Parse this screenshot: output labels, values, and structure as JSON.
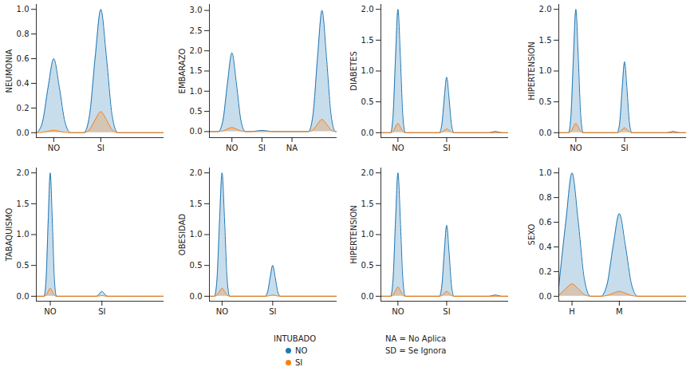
{
  "figure": {
    "legend_title": "INTUBADO",
    "annotations": [
      "NA = No Aplica",
      "SD = Se Ignora"
    ]
  },
  "chart_data": [
    {
      "type": "area",
      "y_label": "NEUMONIA",
      "x": [
        0.64,
        0.76,
        0.88,
        1.0,
        1.12,
        1.24,
        1.36,
        1.64,
        1.76,
        1.88,
        2.0,
        2.12,
        2.24,
        2.36,
        3.34
      ],
      "xlim": [
        0.63,
        3.34
      ],
      "xticks": [
        {
          "value": 1,
          "label": "NO"
        },
        {
          "value": 2,
          "label": "SI"
        }
      ],
      "ylim": [
        -0.04,
        1.04
      ],
      "yticks": [
        {
          "value": 0,
          "label": "0.0"
        },
        0.2,
        0.4,
        0.6,
        0.8,
        {
          "value": 1,
          "label": "1.0"
        }
      ],
      "series": [
        {
          "name": "NO",
          "color": "#1f77b4",
          "values": [
            0,
            0.084,
            0.366,
            0.6,
            0.366,
            0.084,
            0,
            0,
            0.14,
            0.61,
            1.0,
            0.61,
            0.14,
            0,
            0
          ]
        },
        {
          "name": "SI",
          "color": "#ff7f0e",
          "values": [
            0,
            0.003,
            0.012,
            0.02,
            0.012,
            0.003,
            0,
            0,
            0.024,
            0.104,
            0.17,
            0.104,
            0.024,
            0,
            0
          ]
        }
      ]
    },
    {
      "type": "area",
      "y_label": "EMBARAZO",
      "x": [
        0.25,
        0.55,
        0.7,
        0.85,
        1.0,
        1.15,
        1.3,
        1.45,
        1.55,
        1.7,
        1.85,
        2.0,
        2.15,
        2.3,
        2.45,
        3.55,
        3.7,
        3.85,
        4.0,
        4.15,
        4.3,
        4.45,
        4.5
      ],
      "xlim": [
        0.25,
        4.5
      ],
      "xticks": [
        {
          "value": 1,
          "label": "NO"
        },
        {
          "value": 2,
          "label": "SI"
        },
        {
          "value": 3,
          "label": "NA"
        }
      ],
      "ylim": [
        -0.15,
        3.15
      ],
      "yticks": [
        {
          "value": 0,
          "label": "0.0"
        },
        0.5,
        {
          "value": 1,
          "label": "1.0"
        },
        1.5,
        {
          "value": 2,
          "label": "2.0"
        },
        2.5,
        {
          "value": 3,
          "label": "3.0"
        }
      ],
      "series": [
        {
          "name": "NO",
          "color": "#1f77b4",
          "values": [
            0,
            0,
            0.273,
            1.19,
            1.95,
            1.19,
            0.273,
            0,
            0,
            0.004,
            0.018,
            0.03,
            0.018,
            0.004,
            0,
            0,
            0.42,
            1.83,
            3.0,
            1.83,
            0.42,
            0,
            0
          ]
        },
        {
          "name": "SI",
          "color": "#ff7f0e",
          "values": [
            0,
            0,
            0.014,
            0.061,
            0.1,
            0.061,
            0.014,
            0,
            0,
            0,
            0,
            0,
            0,
            0,
            0,
            0,
            0.042,
            0.183,
            0.3,
            0.183,
            0.042,
            0,
            0
          ]
        }
      ]
    },
    {
      "type": "area",
      "y_label": "DIABETES",
      "x": [
        0.65,
        0.85,
        0.9,
        0.95,
        1.0,
        1.05,
        1.1,
        1.15,
        1.85,
        1.9,
        1.95,
        2.0,
        2.05,
        2.1,
        2.15,
        2.85,
        2.9,
        2.95,
        3.0,
        3.05,
        3.1,
        3.15,
        3.27
      ],
      "xlim": [
        0.65,
        3.27
      ],
      "xticks": [
        {
          "value": 1,
          "label": "NO"
        },
        {
          "value": 2,
          "label": "SI"
        }
      ],
      "ylim": [
        -0.08,
        2.08
      ],
      "yticks": [
        {
          "value": 0,
          "label": "0.0"
        },
        0.5,
        {
          "value": 1,
          "label": "1.0"
        },
        1.5,
        {
          "value": 2,
          "label": "2.0"
        }
      ],
      "series": [
        {
          "name": "NO",
          "color": "#1f77b4",
          "values": [
            0,
            0,
            0.28,
            1.22,
            2.0,
            1.22,
            0.28,
            0,
            0,
            0.126,
            0.549,
            0.9,
            0.549,
            0.126,
            0,
            0,
            0.003,
            0.012,
            0.02,
            0.012,
            0.003,
            0,
            0
          ]
        },
        {
          "name": "SI",
          "color": "#ff7f0e",
          "values": [
            0,
            0,
            0.021,
            0.092,
            0.15,
            0.092,
            0.021,
            0,
            0,
            0.008,
            0.037,
            0.06,
            0.037,
            0.008,
            0,
            0,
            0,
            0,
            0,
            0,
            0,
            0,
            0
          ]
        }
      ]
    },
    {
      "type": "area",
      "y_label": "HIPERTENSION",
      "x": [
        0.65,
        0.85,
        0.9,
        0.95,
        1.0,
        1.05,
        1.1,
        1.15,
        1.85,
        1.9,
        1.95,
        2.0,
        2.05,
        2.1,
        2.15,
        2.85,
        2.9,
        2.95,
        3.0,
        3.05,
        3.1,
        3.15,
        3.27
      ],
      "xlim": [
        0.65,
        3.27
      ],
      "xticks": [
        {
          "value": 1,
          "label": "NO"
        },
        {
          "value": 2,
          "label": "SI"
        }
      ],
      "ylim": [
        -0.08,
        2.08
      ],
      "yticks": [
        {
          "value": 0,
          "label": "0.0"
        },
        0.5,
        {
          "value": 1,
          "label": "1.0"
        },
        1.5,
        {
          "value": 2,
          "label": "2.0"
        }
      ],
      "series": [
        {
          "name": "NO",
          "color": "#1f77b4",
          "values": [
            0,
            0,
            0.28,
            1.22,
            2.0,
            1.22,
            0.28,
            0,
            0,
            0.161,
            0.702,
            1.15,
            0.702,
            0.161,
            0,
            0,
            0.003,
            0.012,
            0.02,
            0.012,
            0.003,
            0,
            0
          ]
        },
        {
          "name": "SI",
          "color": "#ff7f0e",
          "values": [
            0,
            0,
            0.021,
            0.092,
            0.15,
            0.092,
            0.021,
            0,
            0,
            0.011,
            0.049,
            0.08,
            0.049,
            0.011,
            0,
            0,
            0,
            0,
            0,
            0,
            0,
            0,
            0
          ]
        }
      ]
    },
    {
      "type": "area",
      "y_label": "TABAQUISMO",
      "x": [
        0.73,
        0.88,
        0.92,
        0.96,
        1.0,
        1.04,
        1.08,
        1.12,
        1.88,
        1.92,
        1.96,
        2.0,
        2.04,
        2.08,
        2.12,
        3.2
      ],
      "xlim": [
        0.73,
        3.2
      ],
      "xticks": [
        {
          "value": 1,
          "label": "NO"
        },
        {
          "value": 2,
          "label": "SI"
        }
      ],
      "ylim": [
        -0.08,
        2.08
      ],
      "yticks": [
        {
          "value": 0,
          "label": "0.0"
        },
        0.5,
        {
          "value": 1,
          "label": "1.0"
        },
        1.5,
        {
          "value": 2,
          "label": "2.0"
        }
      ],
      "series": [
        {
          "name": "NO",
          "color": "#1f77b4",
          "values": [
            0,
            0,
            0.28,
            1.22,
            2.0,
            1.22,
            0.28,
            0,
            0,
            0.011,
            0.049,
            0.08,
            0.049,
            0.011,
            0,
            0
          ]
        },
        {
          "name": "SI",
          "color": "#ff7f0e",
          "values": [
            0,
            0,
            0.018,
            0.079,
            0.13,
            0.079,
            0.018,
            0,
            0,
            0.001,
            0.006,
            0.01,
            0.006,
            0.001,
            0,
            0
          ]
        }
      ]
    },
    {
      "type": "area",
      "y_label": "OBESIDAD",
      "x": [
        0.75,
        0.85,
        0.9,
        0.95,
        1.0,
        1.05,
        1.1,
        1.15,
        1.85,
        1.9,
        1.95,
        2.0,
        2.05,
        2.1,
        2.15,
        3.27
      ],
      "xlim": [
        0.75,
        3.27
      ],
      "xticks": [
        {
          "value": 1,
          "label": "NO"
        },
        {
          "value": 2,
          "label": "SI"
        }
      ],
      "ylim": [
        -0.08,
        2.08
      ],
      "yticks": [
        {
          "value": 0,
          "label": "0.0"
        },
        0.5,
        {
          "value": 1,
          "label": "1.0"
        },
        1.5,
        {
          "value": 2,
          "label": "2.0"
        }
      ],
      "series": [
        {
          "name": "NO",
          "color": "#1f77b4",
          "values": [
            0,
            0,
            0.28,
            1.22,
            2.0,
            1.22,
            0.28,
            0,
            0,
            0.07,
            0.305,
            0.5,
            0.305,
            0.07,
            0,
            0
          ]
        },
        {
          "name": "SI",
          "color": "#ff7f0e",
          "values": [
            0,
            0,
            0.018,
            0.079,
            0.13,
            0.079,
            0.018,
            0,
            0,
            0.003,
            0.012,
            0.02,
            0.012,
            0.003,
            0,
            0
          ]
        }
      ]
    },
    {
      "type": "area",
      "y_label": "HIPERTENSION",
      "x": [
        0.65,
        0.85,
        0.9,
        0.95,
        1.0,
        1.05,
        1.1,
        1.15,
        1.85,
        1.9,
        1.95,
        2.0,
        2.05,
        2.1,
        2.15,
        2.85,
        2.9,
        2.95,
        3.0,
        3.05,
        3.1,
        3.15,
        3.27
      ],
      "xlim": [
        0.65,
        3.27
      ],
      "xticks": [
        {
          "value": 1,
          "label": "NO"
        },
        {
          "value": 2,
          "label": "SI"
        }
      ],
      "ylim": [
        -0.08,
        2.08
      ],
      "yticks": [
        {
          "value": 0,
          "label": "0.0"
        },
        0.5,
        {
          "value": 1,
          "label": "1.0"
        },
        1.5,
        {
          "value": 2,
          "label": "2.0"
        }
      ],
      "series": [
        {
          "name": "NO",
          "color": "#1f77b4",
          "values": [
            0,
            0,
            0.28,
            1.22,
            2.0,
            1.22,
            0.28,
            0,
            0,
            0.161,
            0.702,
            1.15,
            0.702,
            0.161,
            0,
            0,
            0.003,
            0.012,
            0.02,
            0.012,
            0.003,
            0,
            0
          ]
        },
        {
          "name": "SI",
          "color": "#ff7f0e",
          "values": [
            0,
            0,
            0.021,
            0.092,
            0.15,
            0.092,
            0.021,
            0,
            0,
            0.011,
            0.049,
            0.08,
            0.049,
            0.011,
            0,
            0,
            0,
            0,
            0,
            0,
            0,
            0,
            0
          ]
        }
      ]
    },
    {
      "type": "area",
      "y_label": "SEXO",
      "x": [
        0.72,
        0.87,
        1.0,
        1.13,
        1.26,
        1.39,
        1.61,
        1.74,
        1.87,
        2.0,
        2.13,
        2.26,
        2.39,
        3.42
      ],
      "xlim": [
        0.72,
        3.42
      ],
      "xticks": [
        {
          "value": 1,
          "label": "H"
        },
        {
          "value": 2,
          "label": "M"
        }
      ],
      "ylim": [
        -0.04,
        1.04
      ],
      "yticks": [
        {
          "value": 0,
          "label": "0.0"
        },
        0.2,
        0.4,
        0.6,
        0.8,
        {
          "value": 1,
          "label": "1.0"
        }
      ],
      "series": [
        {
          "name": "NO",
          "color": "#1f77b4",
          "values": [
            0.08,
            0.61,
            1.0,
            0.61,
            0.14,
            0,
            0,
            0.094,
            0.409,
            0.67,
            0.409,
            0.094,
            0,
            0
          ]
        },
        {
          "name": "SI",
          "color": "#ff7f0e",
          "values": [
            0.008,
            0.061,
            0.1,
            0.061,
            0.014,
            0,
            0,
            0.006,
            0.024,
            0.04,
            0.024,
            0.006,
            0,
            0
          ]
        }
      ]
    }
  ]
}
